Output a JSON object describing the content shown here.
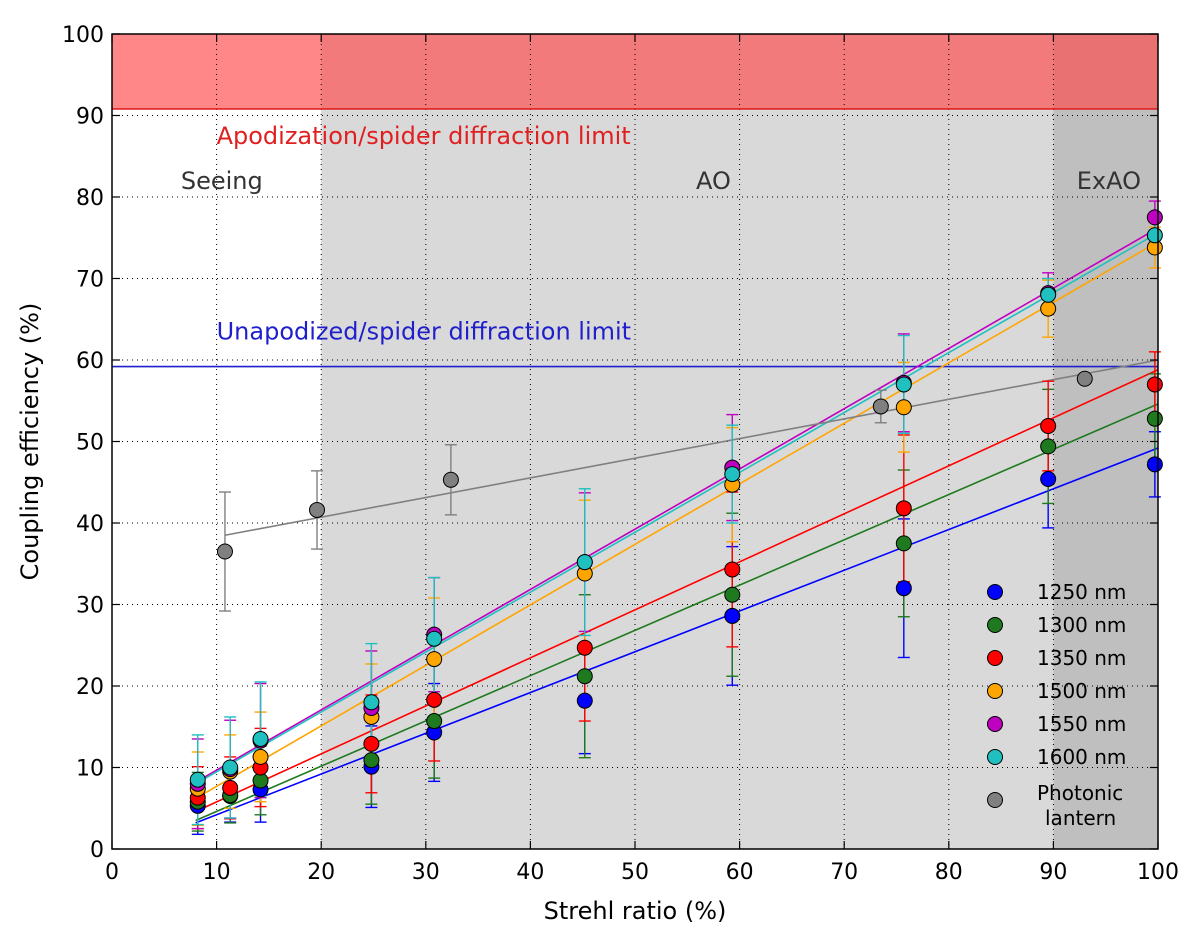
{
  "chart_data": {
    "type": "scatter",
    "xlabel": "Strehl ratio (%)",
    "ylabel": "Coupling efficiency (%)",
    "xlim": [
      0,
      100
    ],
    "ylim": [
      0,
      100
    ],
    "x_ticks": [
      "0",
      "10",
      "20",
      "30",
      "40",
      "50",
      "60",
      "70",
      "80",
      "90",
      "100"
    ],
    "y_ticks": [
      "0",
      "10",
      "20",
      "30",
      "40",
      "50",
      "60",
      "70",
      "80",
      "90",
      "100"
    ],
    "grid": true,
    "regions": [
      {
        "name": "Seeing",
        "x_range": [
          0,
          20
        ],
        "color": "#ffffff"
      },
      {
        "name": "AO",
        "x_range": [
          20,
          90
        ],
        "color": "#d9d9d9"
      },
      {
        "name": "ExAO",
        "x_range": [
          90,
          100
        ],
        "color": "#bfbfbf"
      }
    ],
    "limits": [
      {
        "label": "Apodization/spider diffraction limit",
        "y": 90.8,
        "color": "#e02020",
        "shaded_above": true
      },
      {
        "label": "Unapodized/spider diffraction limit",
        "y": 59.2,
        "color": "#1f1fcc"
      }
    ],
    "strehl": [
      8.2,
      11.3,
      14.2,
      24.8,
      30.8,
      45.2,
      59.3,
      75.7,
      89.5,
      99.7
    ],
    "series": [
      {
        "name": "1250 nm",
        "color": "#0000ff",
        "y": [
          5.3,
          6.5,
          7.3,
          10.1,
          14.3,
          18.2,
          28.6,
          32.0,
          45.4,
          47.2
        ],
        "err": [
          3.5,
          3.2,
          4.0,
          5.0,
          6.0,
          6.5,
          8.5,
          8.5,
          6.0,
          4.0
        ],
        "fit": [
          [
            8,
            3.2
          ],
          [
            100,
            49.2
          ]
        ]
      },
      {
        "name": "1300 nm",
        "color": "#1f7a1f",
        "y": [
          5.8,
          6.6,
          8.4,
          10.9,
          15.7,
          21.2,
          31.2,
          37.5,
          49.4,
          52.8
        ],
        "err": [
          3.6,
          3.4,
          4.2,
          5.4,
          7.0,
          10.0,
          10.0,
          9.0,
          7.0,
          5.5
        ],
        "fit": [
          [
            8,
            3.5
          ],
          [
            100,
            54.6
          ]
        ]
      },
      {
        "name": "1350 nm",
        "color": "#ff0000",
        "y": [
          6.3,
          7.5,
          10.0,
          12.9,
          18.3,
          24.7,
          34.3,
          41.8,
          51.9,
          57.0
        ],
        "err": [
          3.8,
          3.8,
          4.8,
          6.0,
          7.5,
          9.0,
          9.5,
          9.0,
          5.5,
          4.0
        ],
        "fit": [
          [
            8,
            4.6
          ],
          [
            100,
            58.8
          ]
        ]
      },
      {
        "name": "1500 nm",
        "color": "#ffa500",
        "y": [
          7.4,
          9.5,
          11.3,
          16.2,
          23.3,
          33.8,
          44.7,
          54.2,
          66.3,
          73.8
        ],
        "err": [
          4.5,
          4.5,
          5.5,
          6.5,
          7.5,
          9.0,
          7.0,
          5.5,
          3.5,
          2.5
        ],
        "fit": [
          [
            8,
            6.2
          ],
          [
            100,
            74.5
          ]
        ]
      },
      {
        "name": "1550 nm",
        "color": "#c000c0",
        "y": [
          8.0,
          9.8,
          13.3,
          17.3,
          26.3,
          35.2,
          46.8,
          57.2,
          68.2,
          77.5
        ],
        "err": [
          5.5,
          6.0,
          7.0,
          7.0,
          7.0,
          8.5,
          6.5,
          6.0,
          2.5,
          2.0
        ],
        "fit": [
          [
            8,
            8.2
          ],
          [
            100,
            76.2
          ]
        ]
      },
      {
        "name": "1600 nm",
        "color": "#20c0c0",
        "y": [
          8.5,
          10.0,
          13.5,
          18.0,
          25.8,
          35.2,
          46.0,
          57.0,
          68.0,
          75.3
        ],
        "err": [
          5.5,
          6.2,
          7.0,
          7.2,
          7.5,
          9.0,
          6.0,
          6.0,
          2.0,
          2.0
        ],
        "fit": [
          [
            8,
            8.0
          ],
          [
            100,
            75.6
          ]
        ]
      }
    ],
    "lantern": {
      "name": "Photonic lantern",
      "color": "#808080",
      "x": [
        10.8,
        19.6,
        32.4,
        73.5,
        93.0
      ],
      "y": [
        36.5,
        41.6,
        45.3,
        54.3,
        57.7
      ],
      "err": [
        7.3,
        4.8,
        4.3,
        2.0,
        0
      ],
      "fit": [
        [
          10.8,
          38.5
        ],
        [
          100,
          60.0
        ]
      ]
    },
    "legend_position": "lower-right",
    "legend_lantern_lines": [
      "Photonic",
      "lantern"
    ]
  }
}
